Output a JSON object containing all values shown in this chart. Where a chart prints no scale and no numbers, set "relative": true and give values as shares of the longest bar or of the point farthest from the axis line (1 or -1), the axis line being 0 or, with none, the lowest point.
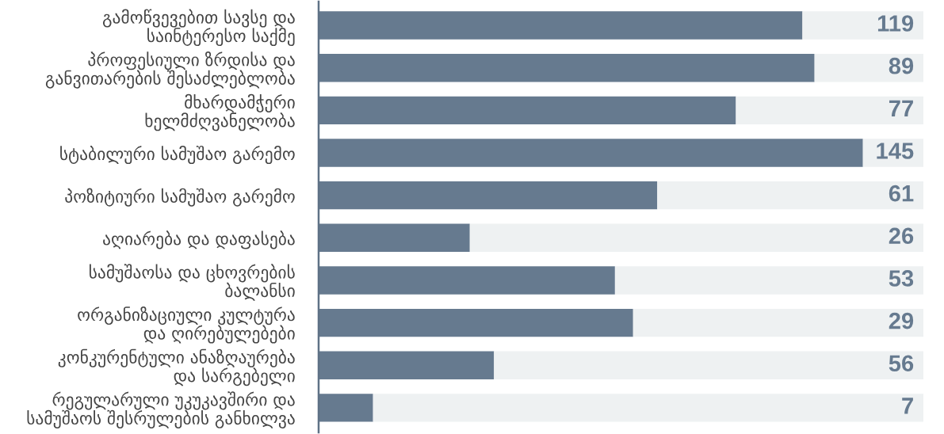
{
  "chart_data": {
    "type": "bar",
    "orientation": "horizontal",
    "stacked": true,
    "relative": true,
    "categories": [
      "გამოწვევებით სავსე და\nსაინტერესო საქმე",
      "პროფესიული ზრდისა და\nგანვითარების შესაძლებლობა",
      "მხარდამჭერი\nხელმძღვანელობა",
      "სტაბილური სამუშაო გარემო",
      "პოზიტიური სამუშაო გარემო",
      "აღიარება და დაფასება",
      "სამუშაოსა და ცხოვრების\nბალანსი",
      "ორგანიზაციული კულტურა\nდა ღირებულებები",
      "კონკურენტული ანაზღაურება\nდა სარგებელი",
      "რეგულარული უკუკავშირი და\nსამუშაოს შესრულების განხილვა"
    ],
    "series": [
      {
        "color": "#667a8f",
        "values": [
          0.8,
          0.82,
          0.69,
          0.9,
          0.56,
          0.25,
          0.49,
          0.52,
          0.29,
          0.09
        ]
      },
      {
        "color": "#eef1f2",
        "values": [
          0.2,
          0.18,
          0.31,
          0.1,
          0.44,
          0.75,
          0.51,
          0.48,
          0.71,
          0.91
        ]
      }
    ],
    "annotations": [
      "119",
      "89",
      "77",
      "145",
      "61",
      "26",
      "53",
      "29",
      "56",
      "7"
    ]
  }
}
